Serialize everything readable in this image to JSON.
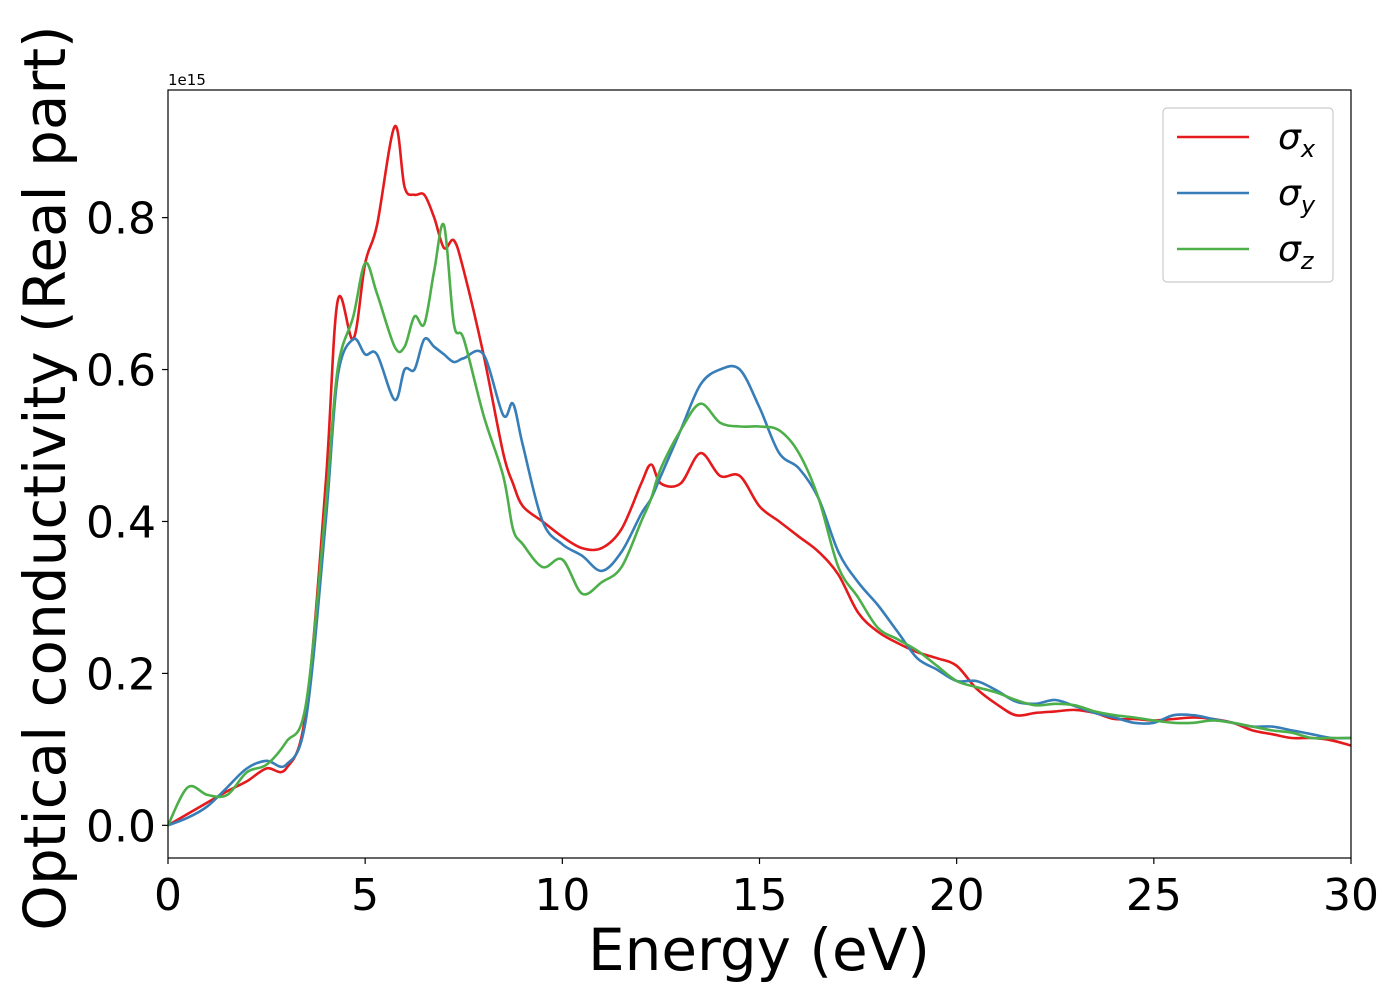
{
  "chart_data": {
    "type": "line",
    "xlabel": "Energy (eV)",
    "ylabel": "Optical conductivity (Real part)",
    "y_offset_text": "1e15",
    "xlim": [
      0,
      30
    ],
    "ylim": [
      -0.043,
      0.968
    ],
    "xticks": [
      0,
      5,
      10,
      15,
      20,
      25,
      30
    ],
    "xtick_labels": [
      "0",
      "5",
      "10",
      "15",
      "20",
      "25",
      "30"
    ],
    "yticks": [
      0.0,
      0.2,
      0.4,
      0.6,
      0.8
    ],
    "ytick_labels": [
      "0.0",
      "0.2",
      "0.4",
      "0.6",
      "0.8"
    ],
    "grid": false,
    "legend_position": "top-right",
    "x": [
      0,
      0.5,
      1,
      1.5,
      2,
      2.5,
      3,
      3.5,
      4,
      4.3,
      4.7,
      5,
      5.3,
      5.75,
      6,
      6.25,
      6.5,
      6.75,
      7,
      7.25,
      7.5,
      8,
      8.5,
      8.75,
      9,
      9.5,
      10,
      10.5,
      11,
      11.5,
      12,
      12.25,
      12.5,
      13,
      13.5,
      14,
      14.5,
      15,
      15.5,
      16,
      16.5,
      17,
      17.5,
      18,
      18.5,
      19,
      19.5,
      20,
      20.5,
      21,
      21.5,
      22,
      22.5,
      23,
      23.5,
      24,
      24.5,
      25,
      25.5,
      26,
      26.5,
      27,
      27.5,
      28,
      28.5,
      29,
      29.5,
      30
    ],
    "series": [
      {
        "name": "σx",
        "symbol": "σ",
        "subscript": "x",
        "color": "#e41a1c",
        "values": [
          0.0,
          0.015,
          0.03,
          0.045,
          0.058,
          0.075,
          0.075,
          0.15,
          0.45,
          0.69,
          0.64,
          0.74,
          0.79,
          0.92,
          0.84,
          0.83,
          0.83,
          0.8,
          0.76,
          0.77,
          0.73,
          0.62,
          0.49,
          0.45,
          0.42,
          0.4,
          0.38,
          0.365,
          0.365,
          0.39,
          0.45,
          0.475,
          0.45,
          0.45,
          0.49,
          0.46,
          0.46,
          0.42,
          0.4,
          0.38,
          0.36,
          0.33,
          0.28,
          0.255,
          0.24,
          0.228,
          0.22,
          0.21,
          0.18,
          0.16,
          0.145,
          0.148,
          0.15,
          0.152,
          0.148,
          0.14,
          0.14,
          0.138,
          0.14,
          0.142,
          0.14,
          0.135,
          0.125,
          0.12,
          0.115,
          0.115,
          0.112,
          0.105
        ]
      },
      {
        "name": "σy",
        "symbol": "σ",
        "subscript": "y",
        "color": "#377eb8",
        "values": [
          0.0,
          0.01,
          0.025,
          0.05,
          0.075,
          0.085,
          0.08,
          0.14,
          0.4,
          0.59,
          0.64,
          0.62,
          0.62,
          0.56,
          0.6,
          0.6,
          0.64,
          0.63,
          0.62,
          0.61,
          0.615,
          0.62,
          0.54,
          0.555,
          0.5,
          0.4,
          0.37,
          0.355,
          0.335,
          0.36,
          0.41,
          0.43,
          0.46,
          0.52,
          0.58,
          0.6,
          0.6,
          0.55,
          0.49,
          0.47,
          0.43,
          0.36,
          0.32,
          0.29,
          0.255,
          0.22,
          0.205,
          0.19,
          0.19,
          0.178,
          0.163,
          0.16,
          0.165,
          0.157,
          0.148,
          0.142,
          0.135,
          0.135,
          0.145,
          0.145,
          0.14,
          0.135,
          0.13,
          0.13,
          0.125,
          0.12,
          0.115,
          0.115
        ]
      },
      {
        "name": "σz",
        "symbol": "σ",
        "subscript": "z",
        "color": "#4daf4a",
        "values": [
          0.0,
          0.05,
          0.04,
          0.04,
          0.07,
          0.08,
          0.11,
          0.16,
          0.42,
          0.6,
          0.67,
          0.74,
          0.7,
          0.63,
          0.63,
          0.67,
          0.66,
          0.73,
          0.79,
          0.66,
          0.64,
          0.54,
          0.46,
          0.39,
          0.37,
          0.34,
          0.35,
          0.305,
          0.32,
          0.34,
          0.4,
          0.43,
          0.47,
          0.52,
          0.555,
          0.53,
          0.525,
          0.525,
          0.52,
          0.49,
          0.43,
          0.34,
          0.3,
          0.26,
          0.245,
          0.23,
          0.21,
          0.19,
          0.182,
          0.175,
          0.165,
          0.158,
          0.16,
          0.158,
          0.15,
          0.145,
          0.142,
          0.138,
          0.135,
          0.135,
          0.138,
          0.135,
          0.13,
          0.125,
          0.122,
          0.115,
          0.115,
          0.115
        ]
      }
    ]
  }
}
